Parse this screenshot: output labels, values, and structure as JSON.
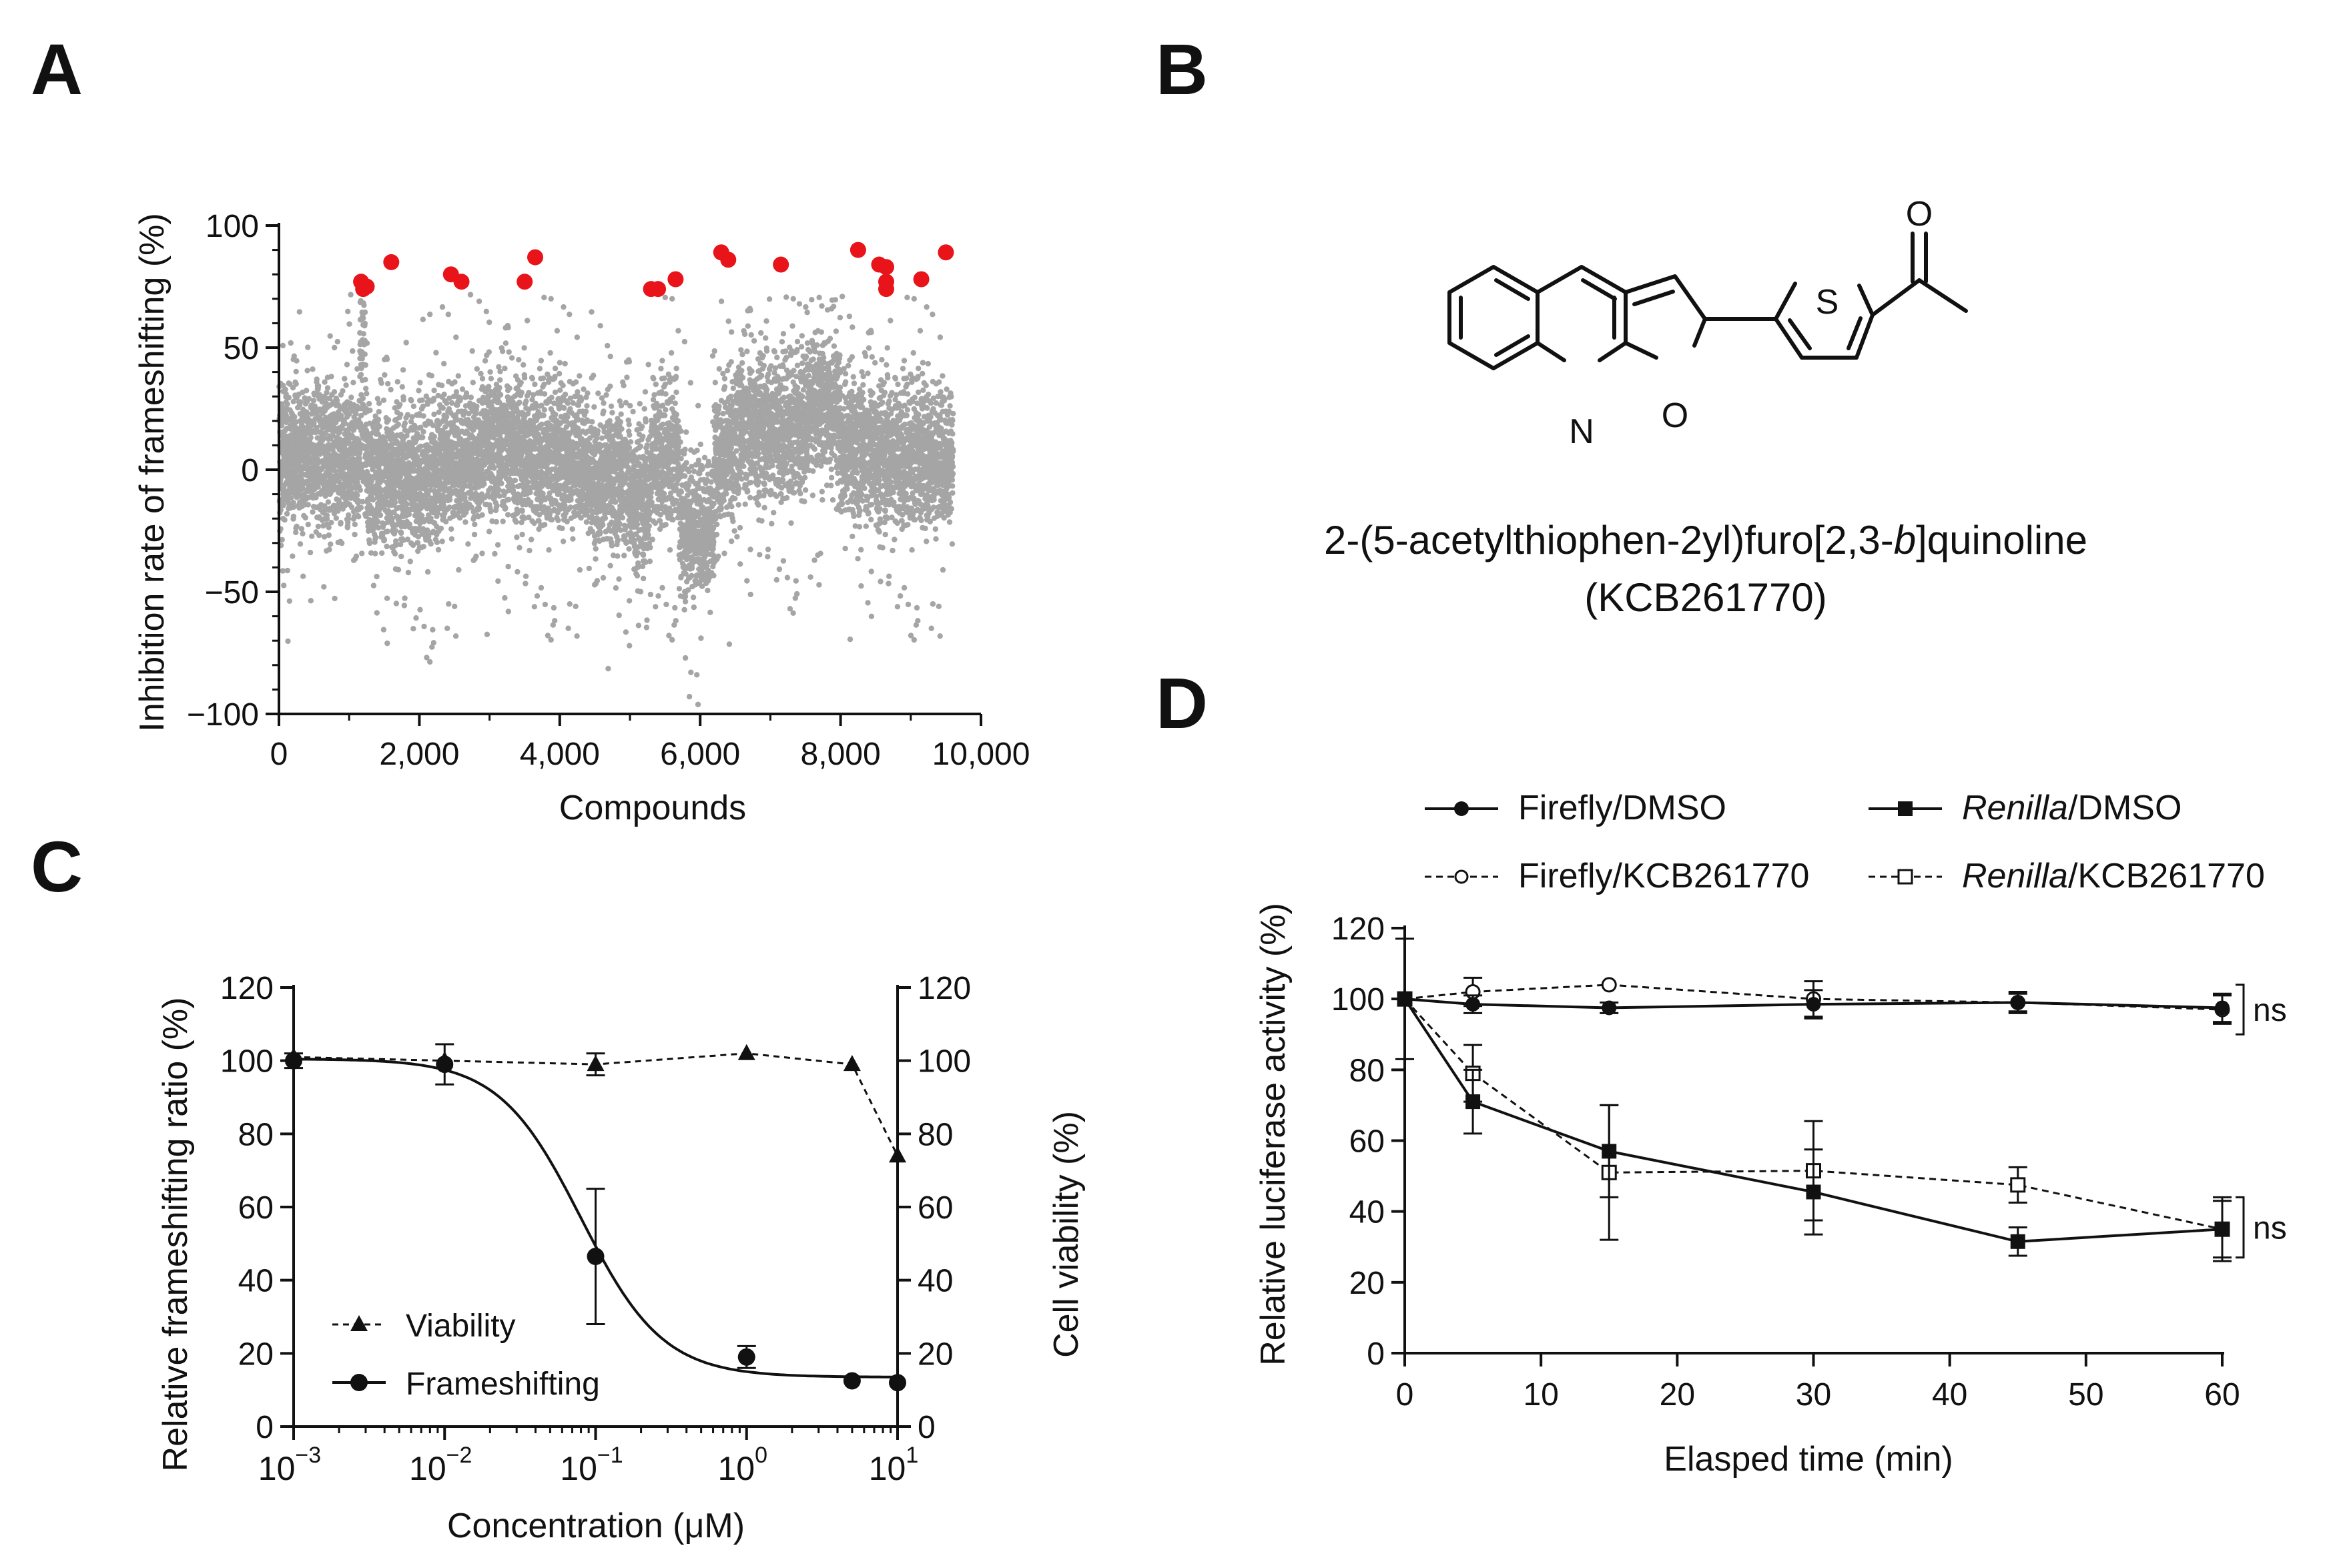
{
  "panels": {
    "a": "A",
    "b": "B",
    "c": "C",
    "d": "D"
  },
  "structure": {
    "atoms": {
      "n": "N",
      "o_ring": "O",
      "s": "S",
      "o_carbonyl": "O"
    },
    "name_pre": "2-(5-acetylthiophen-2yl)furo[2,3-",
    "name_italic": "b",
    "name_post": "]quinoline",
    "code": "(KCB261770)"
  },
  "chart_data": [
    {
      "panel": "A",
      "type": "scatter",
      "xlabel": "Compounds",
      "ylabel": "Inhibition rate of frameshifting (%)",
      "xlim": [
        0,
        10000
      ],
      "ylim": [
        -100,
        100
      ],
      "x_ticks": [
        0,
        2000,
        4000,
        6000,
        8000,
        10000
      ],
      "x_tick_labels": [
        "0",
        "2,000",
        "4,000",
        "6,000",
        "8,000",
        "10,000"
      ],
      "y_ticks": [
        -100,
        -50,
        0,
        50,
        100
      ],
      "y_tick_labels": [
        "−100",
        "−50",
        "0",
        "50",
        "100"
      ],
      "background_count": 9600,
      "background_color": "#a5a5a5",
      "hit_color": "#e8141a",
      "hits": [
        {
          "x": 1170,
          "y": 77
        },
        {
          "x": 1200,
          "y": 74
        },
        {
          "x": 1250,
          "y": 75
        },
        {
          "x": 1600,
          "y": 85
        },
        {
          "x": 2450,
          "y": 80
        },
        {
          "x": 2600,
          "y": 77
        },
        {
          "x": 3500,
          "y": 77
        },
        {
          "x": 3650,
          "y": 87
        },
        {
          "x": 5300,
          "y": 74
        },
        {
          "x": 5400,
          "y": 74
        },
        {
          "x": 5650,
          "y": 78
        },
        {
          "x": 6300,
          "y": 89
        },
        {
          "x": 6400,
          "y": 86
        },
        {
          "x": 7150,
          "y": 84
        },
        {
          "x": 8250,
          "y": 90
        },
        {
          "x": 8550,
          "y": 84
        },
        {
          "x": 8650,
          "y": 83
        },
        {
          "x": 8650,
          "y": 77
        },
        {
          "x": 8650,
          "y": 74
        },
        {
          "x": 9150,
          "y": 78
        },
        {
          "x": 9500,
          "y": 89
        }
      ]
    },
    {
      "panel": "C",
      "type": "scatter",
      "xlabel": "Concentration (μM)",
      "ylabel": "Relative frameshifting ratio (%)",
      "y2label": "Cell viability (%)",
      "x_scale": "log",
      "xlim": [
        0.001,
        10
      ],
      "ylim": [
        0,
        120
      ],
      "x_tick_labels": [
        {
          "base": "10",
          "exp": "−3"
        },
        {
          "base": "10",
          "exp": "−2"
        },
        {
          "base": "10",
          "exp": "−1"
        },
        {
          "base": "10",
          "exp": "0"
        },
        {
          "base": "10",
          "exp": "1"
        }
      ],
      "y_ticks": [
        0,
        20,
        40,
        60,
        80,
        100,
        120
      ],
      "series": [
        {
          "name": "Viability",
          "marker": "triangle",
          "line": "dashed",
          "x": [
            0.001,
            0.01,
            0.1,
            1,
            5,
            10
          ],
          "y": [
            101,
            100,
            99,
            102,
            99,
            74
          ],
          "err": [
            0,
            0,
            3,
            0,
            0,
            0
          ]
        },
        {
          "name": "Frameshifting",
          "marker": "circle",
          "line": "solid",
          "x": [
            0.001,
            0.01,
            0.1,
            1,
            5,
            10
          ],
          "y": [
            100,
            99,
            46.5,
            19,
            12.5,
            12
          ],
          "err": [
            2,
            5.5,
            18.5,
            3,
            0,
            0
          ],
          "fit": {
            "top": 100.5,
            "bottom": 13.5,
            "ic50": 0.08,
            "hill": 1.6
          }
        }
      ]
    },
    {
      "panel": "D",
      "type": "line",
      "xlabel": "Elasped time (min)",
      "ylabel": "Relative luciferase activity (%)",
      "xlim": [
        0,
        60
      ],
      "ylim": [
        0,
        120
      ],
      "x_ticks": [
        0,
        10,
        20,
        30,
        40,
        50,
        60
      ],
      "y_ticks": [
        0,
        20,
        40,
        60,
        80,
        100,
        120
      ],
      "annotations": [
        "ns",
        "ns"
      ],
      "series": [
        {
          "name_plain": "Firefly/DMSO",
          "marker": "circle-filled",
          "line": "solid",
          "x": [
            0,
            5,
            15,
            30,
            45,
            60
          ],
          "y": [
            100,
            98.5,
            97.5,
            98.5,
            99,
            97.5
          ],
          "err": [
            0,
            2.5,
            1.5,
            4,
            3,
            4
          ]
        },
        {
          "name_plain": "Firefly/KCB261770",
          "marker": "circle-open",
          "line": "dashed",
          "x": [
            0,
            5,
            15,
            30,
            45,
            60
          ],
          "y": [
            100,
            102,
            104,
            100,
            99,
            97
          ],
          "err": [
            0,
            4,
            0,
            5,
            2.5,
            4
          ]
        },
        {
          "name_italic": "Renilla",
          "name_rest": "/DMSO",
          "marker": "square-filled",
          "line": "solid",
          "x": [
            0,
            5,
            15,
            30,
            45,
            60
          ],
          "y": [
            100,
            71,
            57,
            45.5,
            31.5,
            35
          ],
          "err": [
            0,
            9,
            13,
            12,
            4,
            8
          ]
        },
        {
          "name_italic": "Renilla",
          "name_rest": "/KCB261770",
          "marker": "square-open",
          "line": "dashed",
          "x": [
            0,
            5,
            15,
            30,
            45,
            60
          ],
          "y": [
            100,
            79,
            51,
            51.5,
            47.5,
            35
          ],
          "err": [
            17,
            8,
            19,
            14,
            5,
            9
          ]
        }
      ]
    }
  ]
}
